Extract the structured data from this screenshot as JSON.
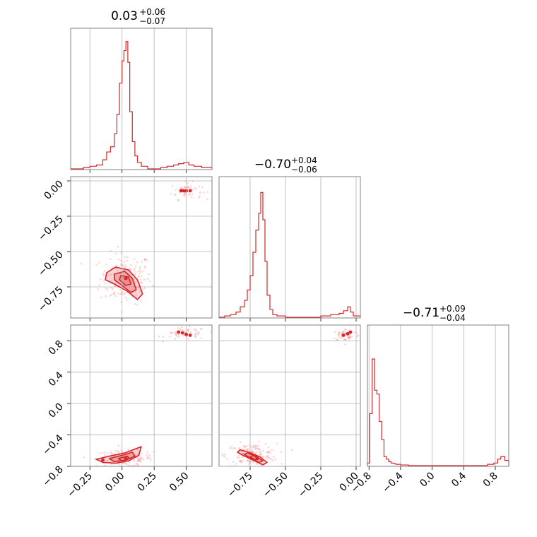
{
  "chart_data": [
    {
      "type": "histogram",
      "panel": "hist-1",
      "title": {
        "value": "0.03",
        "plus": "+0.06",
        "minus": "−0.07"
      },
      "xlim": [
        -0.4,
        0.7
      ],
      "x_ticks": [
        -0.25,
        0.0,
        0.25,
        0.5
      ],
      "x_tick_labels": [],
      "bins": [
        [
          -0.4,
          -0.35,
          0.0
        ],
        [
          -0.35,
          -0.3,
          0.0
        ],
        [
          -0.3,
          -0.25,
          0.01
        ],
        [
          -0.25,
          -0.2,
          0.02
        ],
        [
          -0.2,
          -0.15,
          0.03
        ],
        [
          -0.15,
          -0.12,
          0.07
        ],
        [
          -0.12,
          -0.09,
          0.13
        ],
        [
          -0.09,
          -0.06,
          0.17
        ],
        [
          -0.06,
          -0.04,
          0.27
        ],
        [
          -0.04,
          -0.02,
          0.42
        ],
        [
          -0.02,
          0.0,
          0.66
        ],
        [
          0.0,
          0.015,
          0.83
        ],
        [
          0.015,
          0.03,
          0.91
        ],
        [
          0.03,
          0.045,
          0.98
        ],
        [
          0.045,
          0.06,
          0.82
        ],
        [
          0.06,
          0.08,
          0.44
        ],
        [
          0.08,
          0.1,
          0.21
        ],
        [
          0.1,
          0.12,
          0.1
        ],
        [
          0.12,
          0.15,
          0.05
        ],
        [
          0.15,
          0.2,
          0.02
        ],
        [
          0.2,
          0.3,
          0.0
        ],
        [
          0.3,
          0.35,
          0.01
        ],
        [
          0.35,
          0.4,
          0.02
        ],
        [
          0.4,
          0.44,
          0.03
        ],
        [
          0.44,
          0.48,
          0.04
        ],
        [
          0.48,
          0.52,
          0.05
        ],
        [
          0.52,
          0.56,
          0.03
        ],
        [
          0.56,
          0.62,
          0.02
        ],
        [
          0.62,
          0.7,
          0.01
        ]
      ]
    },
    {
      "type": "contour-scatter",
      "panel": "scatter-2-1",
      "xlim": [
        -0.4,
        0.7
      ],
      "ylim": [
        -0.97,
        0.03
      ],
      "y_ticks": [
        0.0,
        -0.25,
        -0.5,
        -0.75
      ],
      "y_tick_labels": [
        "0.00",
        "−0.25",
        "−0.50",
        "−0.75"
      ],
      "clusters": [
        {
          "center": [
            0.03,
            -0.69
          ],
          "spread": [
            0.1,
            0.09
          ],
          "count": 180
        },
        {
          "center": [
            0.5,
            -0.07
          ],
          "spread": [
            0.06,
            0.03
          ],
          "count": 55
        }
      ],
      "contours": [
        [
          [
            -0.12,
            -0.65
          ],
          [
            -0.05,
            -0.61
          ],
          [
            0.05,
            -0.63
          ],
          [
            0.12,
            -0.7
          ],
          [
            0.16,
            -0.8
          ],
          [
            0.12,
            -0.84
          ],
          [
            0.04,
            -0.78
          ],
          [
            -0.06,
            -0.73
          ],
          [
            -0.13,
            -0.7
          ]
        ],
        [
          [
            -0.06,
            -0.66
          ],
          [
            0.02,
            -0.64
          ],
          [
            0.08,
            -0.69
          ],
          [
            0.11,
            -0.77
          ],
          [
            0.07,
            -0.79
          ],
          [
            0.0,
            -0.74
          ],
          [
            -0.06,
            -0.7
          ]
        ],
        [
          [
            -0.01,
            -0.67
          ],
          [
            0.05,
            -0.68
          ],
          [
            0.07,
            -0.73
          ],
          [
            0.03,
            -0.74
          ],
          [
            -0.02,
            -0.7
          ]
        ]
      ],
      "peak": [
        0.03,
        -0.69
      ],
      "dense_points": [
        [
          0.46,
          -0.07
        ],
        [
          0.48,
          -0.07
        ],
        [
          0.5,
          -0.07
        ],
        [
          0.53,
          -0.07
        ]
      ]
    },
    {
      "type": "contour-scatter",
      "panel": "scatter-3-1",
      "xlim": [
        -0.4,
        0.7
      ],
      "ylim": [
        -0.8,
        1.0
      ],
      "x_ticks": [
        -0.25,
        0.0,
        0.25,
        0.5
      ],
      "x_tick_labels": [
        "−0.25",
        "0.00",
        "0.25",
        "0.50"
      ],
      "y_ticks": [
        0.8,
        0.4,
        0.0,
        -0.4,
        -0.8
      ],
      "y_tick_labels": [
        "0.8",
        "0.4",
        "0.0",
        "−0.4",
        "−0.8"
      ],
      "clusters": [
        {
          "center": [
            0.02,
            -0.7
          ],
          "spread": [
            0.11,
            0.05
          ],
          "count": 170
        },
        {
          "center": [
            0.5,
            0.89
          ],
          "spread": [
            0.08,
            0.04
          ],
          "count": 60
        }
      ],
      "contours": [
        [
          [
            -0.2,
            -0.71
          ],
          [
            -0.1,
            -0.67
          ],
          [
            0.02,
            -0.63
          ],
          [
            0.1,
            -0.58
          ],
          [
            0.15,
            -0.55
          ],
          [
            0.13,
            -0.66
          ],
          [
            0.05,
            -0.73
          ],
          [
            -0.05,
            -0.76
          ],
          [
            -0.15,
            -0.75
          ]
        ],
        [
          [
            -0.1,
            -0.7
          ],
          [
            0.0,
            -0.66
          ],
          [
            0.08,
            -0.62
          ],
          [
            0.1,
            -0.67
          ],
          [
            0.03,
            -0.72
          ],
          [
            -0.06,
            -0.74
          ]
        ],
        [
          [
            -0.03,
            -0.7
          ],
          [
            0.04,
            -0.67
          ],
          [
            0.06,
            -0.7
          ],
          [
            0.0,
            -0.73
          ]
        ]
      ],
      "peak": [
        0.03,
        -0.7
      ],
      "dense_points": [
        [
          -0.15,
          -0.72
        ],
        [
          0.44,
          0.91
        ],
        [
          0.47,
          0.9
        ],
        [
          0.5,
          0.88
        ],
        [
          0.53,
          0.87
        ]
      ]
    },
    {
      "type": "histogram",
      "panel": "hist-2",
      "title": {
        "value": "−0.70",
        "plus": "+0.04",
        "minus": "−0.06"
      },
      "xlim": [
        -0.97,
        0.03
      ],
      "x_ticks": [
        -0.75,
        -0.5,
        -0.25,
        0.0
      ],
      "x_tick_labels": [],
      "bins": [
        [
          -0.97,
          -0.93,
          0.0
        ],
        [
          -0.93,
          -0.89,
          0.01
        ],
        [
          -0.89,
          -0.85,
          0.02
        ],
        [
          -0.85,
          -0.82,
          0.04
        ],
        [
          -0.82,
          -0.79,
          0.08
        ],
        [
          -0.79,
          -0.77,
          0.13
        ],
        [
          -0.77,
          -0.75,
          0.21
        ],
        [
          -0.75,
          -0.73,
          0.32
        ],
        [
          -0.73,
          -0.71,
          0.5
        ],
        [
          -0.71,
          -0.69,
          0.67
        ],
        [
          -0.69,
          -0.675,
          0.8
        ],
        [
          -0.675,
          -0.66,
          0.96
        ],
        [
          -0.66,
          -0.645,
          0.75
        ],
        [
          -0.645,
          -0.63,
          0.43
        ],
        [
          -0.63,
          -0.61,
          0.17
        ],
        [
          -0.61,
          -0.59,
          0.06
        ],
        [
          -0.59,
          -0.56,
          0.02
        ],
        [
          -0.56,
          -0.5,
          0.01
        ],
        [
          -0.5,
          -0.25,
          0.0
        ],
        [
          -0.25,
          -0.18,
          0.01
        ],
        [
          -0.18,
          -0.12,
          0.02
        ],
        [
          -0.12,
          -0.09,
          0.03
        ],
        [
          -0.09,
          -0.06,
          0.05
        ],
        [
          -0.06,
          -0.04,
          0.08
        ],
        [
          -0.04,
          -0.02,
          0.04
        ],
        [
          -0.02,
          0.03,
          0.01
        ]
      ]
    },
    {
      "type": "contour-scatter",
      "panel": "scatter-3-2",
      "xlim": [
        -0.97,
        0.03
      ],
      "ylim": [
        -0.8,
        1.0
      ],
      "x_ticks": [
        -0.75,
        -0.5,
        -0.25,
        0.0
      ],
      "x_tick_labels": [
        "−0.75",
        "−0.50",
        "−0.25",
        "0.00"
      ],
      "clusters": [
        {
          "center": [
            -0.74,
            -0.65
          ],
          "spread": [
            0.09,
            0.07
          ],
          "count": 150
        },
        {
          "center": [
            -0.07,
            0.87
          ],
          "spread": [
            0.05,
            0.04
          ],
          "count": 60
        }
      ],
      "contours": [
        [
          [
            -0.82,
            -0.59
          ],
          [
            -0.76,
            -0.62
          ],
          [
            -0.68,
            -0.68
          ],
          [
            -0.63,
            -0.75
          ],
          [
            -0.66,
            -0.78
          ],
          [
            -0.73,
            -0.72
          ],
          [
            -0.8,
            -0.66
          ],
          [
            -0.84,
            -0.62
          ]
        ],
        [
          [
            -0.77,
            -0.63
          ],
          [
            -0.71,
            -0.67
          ],
          [
            -0.66,
            -0.73
          ],
          [
            -0.69,
            -0.75
          ],
          [
            -0.75,
            -0.69
          ],
          [
            -0.79,
            -0.65
          ]
        ],
        [
          [
            -0.73,
            -0.66
          ],
          [
            -0.69,
            -0.7
          ],
          [
            -0.71,
            -0.72
          ],
          [
            -0.75,
            -0.68
          ]
        ]
      ],
      "peak": [
        -0.7,
        -0.7
      ],
      "dense_points": [
        [
          -0.09,
          0.87
        ],
        [
          -0.06,
          0.89
        ],
        [
          -0.04,
          0.91
        ]
      ]
    },
    {
      "type": "histogram",
      "panel": "hist-3",
      "title": {
        "value": "−0.71",
        "plus": "+0.09",
        "minus": "−0.04"
      },
      "xlim": [
        -0.82,
        0.97
      ],
      "x_ticks": [
        -0.8,
        -0.4,
        0.0,
        0.4,
        0.8
      ],
      "x_tick_labels": [
        "−0.8",
        "−0.4",
        "0.0",
        "0.4",
        "0.8"
      ],
      "bins": [
        [
          -0.82,
          -0.79,
          0.02
        ],
        [
          -0.79,
          -0.76,
          0.4
        ],
        [
          -0.76,
          -0.73,
          0.82
        ],
        [
          -0.73,
          -0.7,
          0.58
        ],
        [
          -0.7,
          -0.67,
          0.55
        ],
        [
          -0.67,
          -0.64,
          0.34
        ],
        [
          -0.64,
          -0.61,
          0.2
        ],
        [
          -0.61,
          -0.58,
          0.07
        ],
        [
          -0.58,
          -0.55,
          0.05
        ],
        [
          -0.55,
          -0.52,
          0.03
        ],
        [
          -0.52,
          -0.49,
          0.02
        ],
        [
          -0.49,
          -0.46,
          0.015
        ],
        [
          -0.46,
          -0.4,
          0.01
        ],
        [
          -0.4,
          -0.3,
          0.005
        ],
        [
          -0.3,
          0.7,
          0.0
        ],
        [
          0.7,
          0.78,
          0.01
        ],
        [
          0.78,
          0.83,
          0.02
        ],
        [
          0.83,
          0.87,
          0.05
        ],
        [
          0.87,
          0.92,
          0.07
        ],
        [
          0.92,
          0.97,
          0.04
        ]
      ]
    }
  ],
  "colors": {
    "line": "#d62728",
    "fill": "#e8888a",
    "points": "#f08a8c",
    "grid": "#b0b0b0",
    "frame": "#808080"
  }
}
